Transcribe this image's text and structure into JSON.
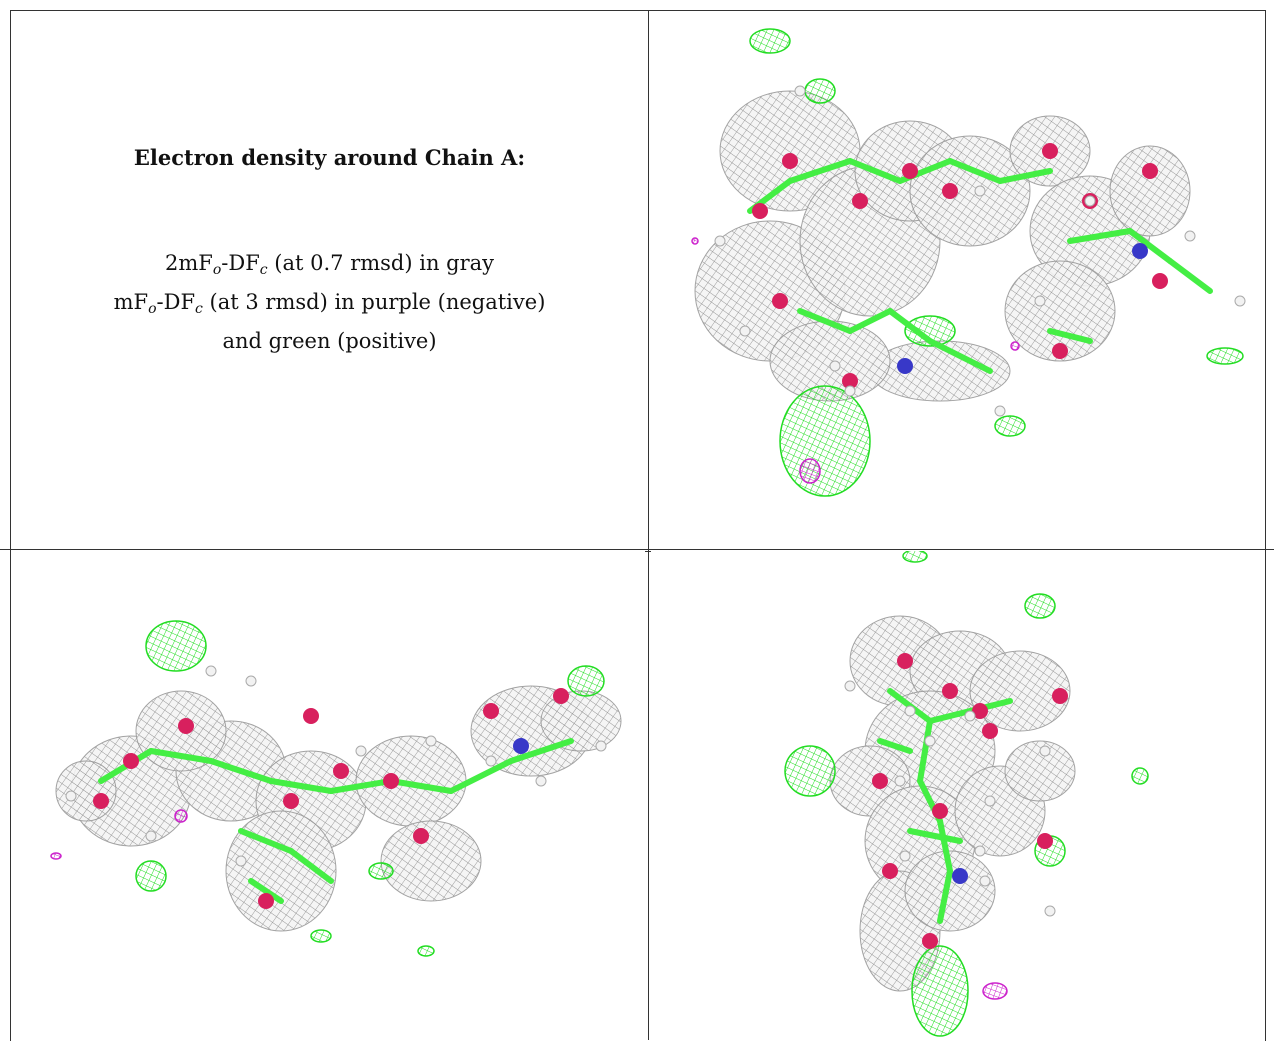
{
  "panel_text": {
    "title": "Electron density around Chain A:",
    "line1": {
      "pre": "2mF",
      "sub1": "o",
      "mid": "-DF",
      "sub2": "c",
      "post": " (at 0.7 rmsd) in gray"
    },
    "line2": {
      "pre": "mF",
      "sub1": "o",
      "mid": "-DF",
      "sub2": "c",
      "post": " (at 3 rmsd) in purple (negative)"
    },
    "line3": "and green (positive)"
  },
  "colors": {
    "mesh_gray": "#8a8a8a",
    "mesh_positive": "#22dd22",
    "mesh_negative": "#cc22cc",
    "atom_oxygen": "#d8205e",
    "atom_nitrogen": "#3838c8",
    "atom_carbon": "#44ee44",
    "atom_hydrogen": "#f2f2f2"
  },
  "images": [
    {
      "name": "density-view-top-right"
    },
    {
      "name": "density-view-bottom-left"
    },
    {
      "name": "density-view-bottom-right"
    }
  ]
}
